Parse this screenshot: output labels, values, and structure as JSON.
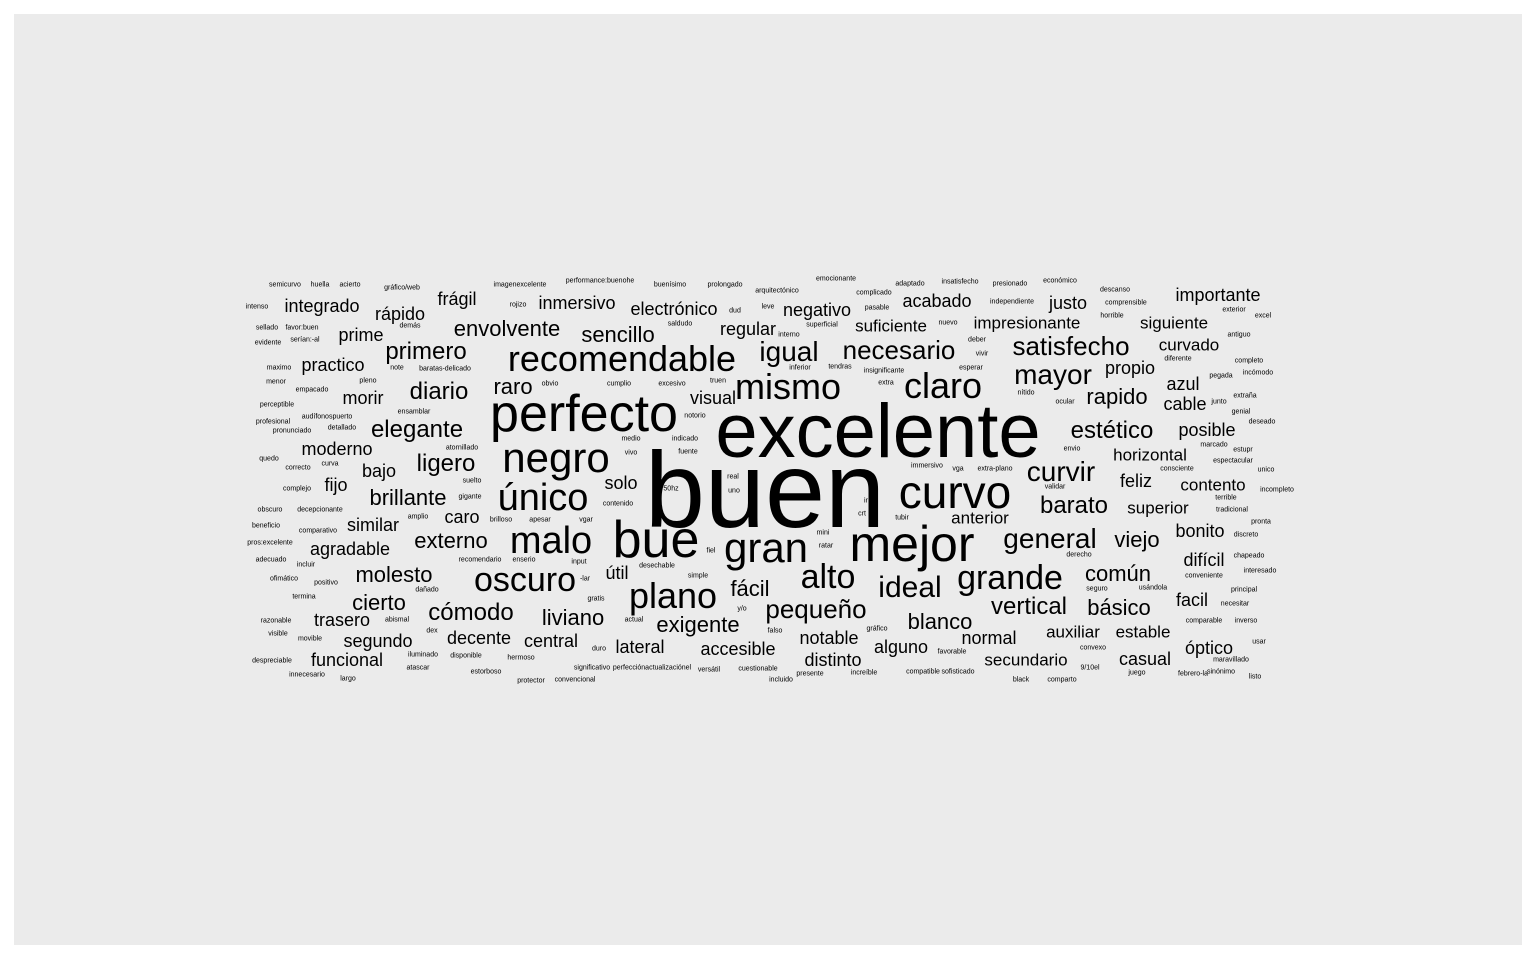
{
  "background_color": "#ebebeb",
  "text_color": "#000000",
  "words": [
    {
      "text": "buen",
      "size": 108
    },
    {
      "text": "excelente",
      "size": 76
    },
    {
      "text": "perfecto",
      "size": 52
    },
    {
      "text": "mejor",
      "size": 50
    },
    {
      "text": "bue",
      "size": 52
    },
    {
      "text": "curvo",
      "size": 46
    },
    {
      "text": "negro",
      "size": 42
    },
    {
      "text": "gran",
      "size": 42
    },
    {
      "text": "malo",
      "size": 38
    },
    {
      "text": "mismo",
      "size": 36
    },
    {
      "text": "único",
      "size": 38
    },
    {
      "text": "claro",
      "size": 36
    },
    {
      "text": "recomendable",
      "size": 36
    },
    {
      "text": "alto",
      "size": 34
    },
    {
      "text": "plano",
      "size": 36
    },
    {
      "text": "oscuro",
      "size": 34
    },
    {
      "text": "grande",
      "size": 34
    },
    {
      "text": "ideal",
      "size": 30
    },
    {
      "text": "mayor",
      "size": 28
    },
    {
      "text": "curvir",
      "size": 28
    },
    {
      "text": "general",
      "size": 28
    },
    {
      "text": "satisfecho",
      "size": 26
    },
    {
      "text": "igual",
      "size": 28
    },
    {
      "text": "necesario",
      "size": 26
    },
    {
      "text": "pequeño",
      "size": 26
    },
    {
      "text": "vertical",
      "size": 24
    },
    {
      "text": "barato",
      "size": 24
    },
    {
      "text": "estético",
      "size": 24
    },
    {
      "text": "elegante",
      "size": 24
    },
    {
      "text": "ligero",
      "size": 24
    },
    {
      "text": "diario",
      "size": 24
    },
    {
      "text": "primero",
      "size": 24
    },
    {
      "text": "cómodo",
      "size": 24
    },
    {
      "text": "externo",
      "size": 22
    },
    {
      "text": "liviano",
      "size": 22
    },
    {
      "text": "rapido",
      "size": 22
    },
    {
      "text": "común",
      "size": 22
    },
    {
      "text": "blanco",
      "size": 22
    },
    {
      "text": "exigente",
      "size": 22
    },
    {
      "text": "envolvente",
      "size": 22
    },
    {
      "text": "brillante",
      "size": 22
    },
    {
      "text": "molesto",
      "size": 22
    },
    {
      "text": "raro",
      "size": 22
    },
    {
      "text": "sencillo",
      "size": 22
    },
    {
      "text": "básico",
      "size": 22
    },
    {
      "text": "cierto",
      "size": 22
    },
    {
      "text": "fácil",
      "size": 22
    },
    {
      "text": "viejo",
      "size": 22
    },
    {
      "text": "negativo",
      "size": 18
    },
    {
      "text": "electrónico",
      "size": 18
    },
    {
      "text": "inmersivo",
      "size": 18
    },
    {
      "text": "integrado",
      "size": 18
    },
    {
      "text": "rápido",
      "size": 18
    },
    {
      "text": "frágil",
      "size": 18
    },
    {
      "text": "acabado",
      "size": 18
    },
    {
      "text": "justo",
      "size": 18
    },
    {
      "text": "importante",
      "size": 18
    },
    {
      "text": "suficiente",
      "size": 17
    },
    {
      "text": "impresionante",
      "size": 17
    },
    {
      "text": "siguiente",
      "size": 17
    },
    {
      "text": "prime",
      "size": 18
    },
    {
      "text": "regular",
      "size": 18
    },
    {
      "text": "curvado",
      "size": 17
    },
    {
      "text": "practico",
      "size": 18
    },
    {
      "text": "propio",
      "size": 18
    },
    {
      "text": "azul",
      "size": 18
    },
    {
      "text": "morir",
      "size": 18
    },
    {
      "text": "visual",
      "size": 18
    },
    {
      "text": "cable",
      "size": 18
    },
    {
      "text": "posible",
      "size": 18
    },
    {
      "text": "moderno",
      "size": 18
    },
    {
      "text": "horizontal",
      "size": 17
    },
    {
      "text": "bajo",
      "size": 18
    },
    {
      "text": "feliz",
      "size": 18
    },
    {
      "text": "fijo",
      "size": 18
    },
    {
      "text": "solo",
      "size": 18
    },
    {
      "text": "contento",
      "size": 17
    },
    {
      "text": "superior",
      "size": 17
    },
    {
      "text": "anterior",
      "size": 17
    },
    {
      "text": "bonito",
      "size": 18
    },
    {
      "text": "similar",
      "size": 18
    },
    {
      "text": "caro",
      "size": 18
    },
    {
      "text": "agradable",
      "size": 18
    },
    {
      "text": "difícil",
      "size": 18
    },
    {
      "text": "útil",
      "size": 18
    },
    {
      "text": "facil",
      "size": 18
    },
    {
      "text": "trasero",
      "size": 18
    },
    {
      "text": "segundo",
      "size": 18
    },
    {
      "text": "decente",
      "size": 18
    },
    {
      "text": "central",
      "size": 18
    },
    {
      "text": "lateral",
      "size": 18
    },
    {
      "text": "accesible",
      "size": 18
    },
    {
      "text": "notable",
      "size": 18
    },
    {
      "text": "alguno",
      "size": 18
    },
    {
      "text": "normal",
      "size": 18
    },
    {
      "text": "auxiliar",
      "size": 17
    },
    {
      "text": "estable",
      "size": 17
    },
    {
      "text": "óptico",
      "size": 18
    },
    {
      "text": "funcional",
      "size": 18
    },
    {
      "text": "distinto",
      "size": 18
    },
    {
      "text": "secundario",
      "size": 17
    },
    {
      "text": "casual",
      "size": 18
    },
    {
      "text": "semicurvo",
      "size": 7
    },
    {
      "text": "huella",
      "size": 7
    },
    {
      "text": "acierto",
      "size": 7
    },
    {
      "text": "gráfico/web",
      "size": 7
    },
    {
      "text": "imagenexcelente",
      "size": 7
    },
    {
      "text": "performance:buenohe",
      "size": 7
    },
    {
      "text": "buenísimo",
      "size": 7
    },
    {
      "text": "prolongado",
      "size": 7
    },
    {
      "text": "arquitectónico",
      "size": 7
    },
    {
      "text": "emocionante",
      "size": 7
    },
    {
      "text": "complicado",
      "size": 7
    },
    {
      "text": "adaptado",
      "size": 7
    },
    {
      "text": "insatisfecho",
      "size": 7
    },
    {
      "text": "presionado",
      "size": 7
    },
    {
      "text": "económico",
      "size": 7
    },
    {
      "text": "descanso",
      "size": 7
    },
    {
      "text": "intenso",
      "size": 7
    },
    {
      "text": "rojizo",
      "size": 7
    },
    {
      "text": "dud",
      "size": 7
    },
    {
      "text": "leve",
      "size": 7
    },
    {
      "text": "pasable",
      "size": 7
    },
    {
      "text": "independiente",
      "size": 7
    },
    {
      "text": "comprensible",
      "size": 7
    },
    {
      "text": "exterior",
      "size": 7
    },
    {
      "text": "sellado",
      "size": 7
    },
    {
      "text": "favor:buen",
      "size": 7
    },
    {
      "text": "demás",
      "size": 7
    },
    {
      "text": "saldudo",
      "size": 7
    },
    {
      "text": "superficial",
      "size": 7
    },
    {
      "text": "nuevo",
      "size": 7
    },
    {
      "text": "horrible",
      "size": 7
    },
    {
      "text": "excel",
      "size": 7
    },
    {
      "text": "evidente",
      "size": 7
    },
    {
      "text": "serían:-al",
      "size": 7
    },
    {
      "text": "interno",
      "size": 7
    },
    {
      "text": "deber",
      "size": 7
    },
    {
      "text": "antiguo",
      "size": 7
    },
    {
      "text": "vivir",
      "size": 7
    },
    {
      "text": "diferente",
      "size": 7
    },
    {
      "text": "maximo",
      "size": 7
    },
    {
      "text": "pleno",
      "size": 7
    },
    {
      "text": "note",
      "size": 7
    },
    {
      "text": "baratas-delicado",
      "size": 7
    },
    {
      "text": "obvio",
      "size": 7
    },
    {
      "text": "cumplio",
      "size": 7
    },
    {
      "text": "excesivo",
      "size": 7
    },
    {
      "text": "truen",
      "size": 7
    },
    {
      "text": "inferior",
      "size": 7
    },
    {
      "text": "tendras",
      "size": 7
    },
    {
      "text": "insignificante",
      "size": 7
    },
    {
      "text": "esperar",
      "size": 7
    },
    {
      "text": "completo",
      "size": 7
    },
    {
      "text": "incómodo",
      "size": 7
    },
    {
      "text": "menor",
      "size": 7
    },
    {
      "text": "empacado",
      "size": 7
    },
    {
      "text": "ensamblar",
      "size": 7
    },
    {
      "text": "extra",
      "size": 7
    },
    {
      "text": "nítido",
      "size": 7
    },
    {
      "text": "pegada",
      "size": 7
    },
    {
      "text": "extraña",
      "size": 7
    },
    {
      "text": "perceptible",
      "size": 7
    },
    {
      "text": "audífonospuerto",
      "size": 7
    },
    {
      "text": "ocular",
      "size": 7
    },
    {
      "text": "junto",
      "size": 7
    },
    {
      "text": "profesional",
      "size": 7
    },
    {
      "text": "pronunciado",
      "size": 7
    },
    {
      "text": "detallado",
      "size": 7
    },
    {
      "text": "medio",
      "size": 7
    },
    {
      "text": "indicado",
      "size": 7
    },
    {
      "text": "genial",
      "size": 7
    },
    {
      "text": "deseado",
      "size": 7
    },
    {
      "text": "atornillado",
      "size": 7
    },
    {
      "text": "vivo",
      "size": 7
    },
    {
      "text": "fuente",
      "size": 7
    },
    {
      "text": "envio",
      "size": 7
    },
    {
      "text": "marcado",
      "size": 7
    },
    {
      "text": "estupr",
      "size": 7
    },
    {
      "text": "quedo",
      "size": 7
    },
    {
      "text": "correcto",
      "size": 7
    },
    {
      "text": "curva",
      "size": 7
    },
    {
      "text": "immersivo",
      "size": 7
    },
    {
      "text": "vga",
      "size": 7
    },
    {
      "text": "extra-plano",
      "size": 7
    },
    {
      "text": "consciente",
      "size": 7
    },
    {
      "text": "espectacular",
      "size": 7
    },
    {
      "text": "unico",
      "size": 7
    },
    {
      "text": "suelto",
      "size": 7
    },
    {
      "text": "real",
      "size": 7
    },
    {
      "text": "complejo",
      "size": 7
    },
    {
      "text": "uno",
      "size": 7
    },
    {
      "text": "validar",
      "size": 7
    },
    {
      "text": "incompleto",
      "size": 7
    },
    {
      "text": "gigante",
      "size": 7
    },
    {
      "text": "50hz",
      "size": 7
    },
    {
      "text": "terrible",
      "size": 7
    },
    {
      "text": "obscuro",
      "size": 7
    },
    {
      "text": "decepcionante",
      "size": 7
    },
    {
      "text": "contenido",
      "size": 7
    },
    {
      "text": "ir",
      "size": 7
    },
    {
      "text": "tradicional",
      "size": 7
    },
    {
      "text": "amplio",
      "size": 7
    },
    {
      "text": "brilloso",
      "size": 7
    },
    {
      "text": "apesar",
      "size": 7
    },
    {
      "text": "vgar",
      "size": 7
    },
    {
      "text": "crt",
      "size": 7
    },
    {
      "text": "tubir",
      "size": 7
    },
    {
      "text": "pronta",
      "size": 7
    },
    {
      "text": "beneficio",
      "size": 7
    },
    {
      "text": "comparativo",
      "size": 7
    },
    {
      "text": "mini",
      "size": 7
    },
    {
      "text": "discreto",
      "size": 7
    },
    {
      "text": "pros:excelente",
      "size": 7
    },
    {
      "text": "ratar",
      "size": 7
    },
    {
      "text": "fiel",
      "size": 7
    },
    {
      "text": "chapeado",
      "size": 7
    },
    {
      "text": "adecuado",
      "size": 7
    },
    {
      "text": "recomendario",
      "size": 7
    },
    {
      "text": "enserio",
      "size": 7
    },
    {
      "text": "input",
      "size": 7
    },
    {
      "text": "desechable",
      "size": 7
    },
    {
      "text": "derecho",
      "size": 7
    },
    {
      "text": "incluir",
      "size": 7
    },
    {
      "text": "simple",
      "size": 7
    },
    {
      "text": "interesado",
      "size": 7
    },
    {
      "text": "ofimático",
      "size": 7
    },
    {
      "text": "positivo",
      "size": 7
    },
    {
      "text": "dañado",
      "size": 7
    },
    {
      "text": "usándola",
      "size": 7
    },
    {
      "text": "conveniente",
      "size": 7
    },
    {
      "text": "termina",
      "size": 7
    },
    {
      "text": "-lar",
      "size": 7
    },
    {
      "text": "gratis",
      "size": 7
    },
    {
      "text": "seguro",
      "size": 7
    },
    {
      "text": "principal",
      "size": 7
    },
    {
      "text": "razonable",
      "size": 7
    },
    {
      "text": "abismal",
      "size": 7
    },
    {
      "text": "y/o",
      "size": 7
    },
    {
      "text": "necesitar",
      "size": 7
    },
    {
      "text": "visible",
      "size": 7
    },
    {
      "text": "dex",
      "size": 7
    },
    {
      "text": "actual",
      "size": 7
    },
    {
      "text": "falso",
      "size": 7
    },
    {
      "text": "gráfico",
      "size": 7
    },
    {
      "text": "comparable",
      "size": 7
    },
    {
      "text": "inverso",
      "size": 7
    },
    {
      "text": "movible",
      "size": 7
    },
    {
      "text": "usar",
      "size": 7
    },
    {
      "text": "favorable",
      "size": 7
    },
    {
      "text": "convexo",
      "size": 7
    },
    {
      "text": "despreciable",
      "size": 7
    },
    {
      "text": "iluminado",
      "size": 7
    },
    {
      "text": "disponible",
      "size": 7
    },
    {
      "text": "hermoso",
      "size": 7
    },
    {
      "text": "duro",
      "size": 7
    },
    {
      "text": "maravillado",
      "size": 7
    },
    {
      "text": "innecesario",
      "size": 7
    },
    {
      "text": "atascar",
      "size": 7
    },
    {
      "text": "estorboso",
      "size": 7
    },
    {
      "text": "significativo",
      "size": 7
    },
    {
      "text": "perfecciónactualizaciónel",
      "size": 7
    },
    {
      "text": "versátil",
      "size": 7
    },
    {
      "text": "cuestionable",
      "size": 7
    },
    {
      "text": "presente",
      "size": 7
    },
    {
      "text": "increíble",
      "size": 7
    },
    {
      "text": "compatible",
      "size": 7
    },
    {
      "text": "sofisticado",
      "size": 7
    },
    {
      "text": "9/10el",
      "size": 7
    },
    {
      "text": "juego",
      "size": 7
    },
    {
      "text": "febrero-la",
      "size": 7
    },
    {
      "text": "sinónimo",
      "size": 7
    },
    {
      "text": "listo",
      "size": 7
    },
    {
      "text": "largo",
      "size": 7
    },
    {
      "text": "protector",
      "size": 7
    },
    {
      "text": "convencional",
      "size": 7
    },
    {
      "text": "incluido",
      "size": 7
    },
    {
      "text": "black",
      "size": 7
    },
    {
      "text": "comparto",
      "size": 7
    },
    {
      "text": "notorio",
      "size": 7
    },
    {
      "text": "-la",
      "size": 7
    }
  ]
}
